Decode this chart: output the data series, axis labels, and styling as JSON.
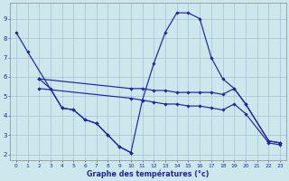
{
  "background_color": "#cce8ec",
  "grid_color": "#99bbcc",
  "line_color": "#2222aa",
  "xlabel": "Graphe des températures (°c)",
  "yticks": [
    2,
    3,
    4,
    5,
    6,
    7,
    8,
    9
  ],
  "xticks": [
    0,
    1,
    2,
    3,
    4,
    5,
    6,
    7,
    8,
    9,
    10,
    11,
    12,
    13,
    14,
    15,
    16,
    17,
    18,
    19,
    20,
    21,
    22,
    23
  ],
  "xlim": [
    -0.5,
    23.5
  ],
  "ylim": [
    1.7,
    9.8
  ],
  "series": [
    {
      "x": [
        0,
        1,
        4,
        5,
        6,
        7,
        8,
        9,
        10,
        11,
        12,
        13,
        14,
        15,
        16,
        17,
        18,
        19,
        20,
        22,
        23
      ],
      "y": [
        8.3,
        7.3,
        4.4,
        4.3,
        3.8,
        3.6,
        3.0,
        2.4,
        2.1,
        4.8,
        6.7,
        8.3,
        9.3,
        9.3,
        9.0,
        7.0,
        5.9,
        5.4,
        4.6,
        2.7,
        2.6
      ]
    },
    {
      "comment": "descending line from (2,5.9) to (10,2.1)",
      "x": [
        2,
        3,
        4,
        5,
        6,
        7,
        8,
        9,
        10
      ],
      "y": [
        5.9,
        5.4,
        4.4,
        4.3,
        3.8,
        3.6,
        3.0,
        2.4,
        2.1
      ]
    },
    {
      "x": [
        2,
        10,
        11,
        12,
        13,
        14,
        15,
        16,
        17,
        18,
        19,
        20,
        22,
        23
      ],
      "y": [
        5.9,
        5.4,
        5.4,
        5.3,
        5.3,
        5.2,
        5.2,
        5.2,
        5.2,
        5.1,
        5.4,
        4.6,
        2.7,
        2.6
      ]
    },
    {
      "x": [
        2,
        10,
        11,
        12,
        13,
        14,
        15,
        16,
        17,
        18,
        19,
        20,
        22,
        23
      ],
      "y": [
        5.4,
        4.9,
        4.8,
        4.7,
        4.6,
        4.6,
        4.5,
        4.5,
        4.4,
        4.3,
        4.6,
        4.1,
        2.6,
        2.5
      ]
    }
  ]
}
